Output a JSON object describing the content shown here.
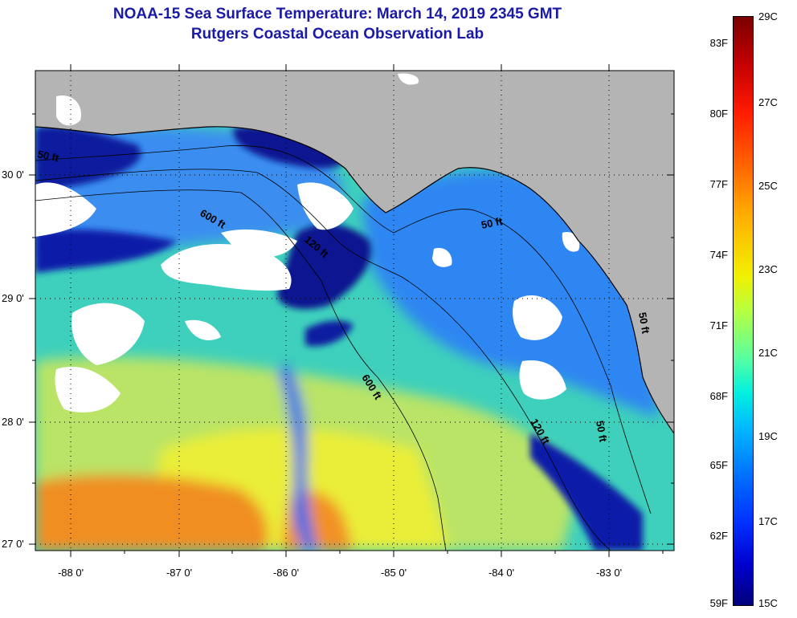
{
  "header": {
    "title": "NOAA-15 Sea Surface Temperature:  March 14, 2019 2345 GMT",
    "subtitle": "Rutgers Coastal Ocean Observation Lab"
  },
  "map": {
    "lat_range": [
      26.95,
      30.8
    ],
    "lon_range": [
      -88.35,
      -82.4
    ],
    "lat_ticks": [
      "30 0'",
      "29 0'",
      "28 0'",
      "27 0'"
    ],
    "lon_ticks": [
      "-88 0'",
      "-87 0'",
      "-86 0'",
      "-85 0'",
      "-84 0'",
      "-83 0'"
    ],
    "contour_labels": [
      "50 ft",
      "600 ft",
      "120 ft",
      "50 ft",
      "600 ft",
      "120 ft",
      "50 ft",
      "50 ft"
    ],
    "colors": {
      "land": "#b4b4b4",
      "cloud": "#ffffff",
      "cold": "#00109a",
      "cool": "#2a7cf0",
      "mid": "#32d6b8",
      "warm": "#e6ec30",
      "hot": "#f08a20"
    }
  },
  "colorbar": {
    "fahrenheit": [
      "83F",
      "80F",
      "77F",
      "74F",
      "71F",
      "68F",
      "65F",
      "62F",
      "59F"
    ],
    "celsius": [
      "29C",
      "27C",
      "25C",
      "23C",
      "21C",
      "19C",
      "17C",
      "15C"
    ]
  }
}
